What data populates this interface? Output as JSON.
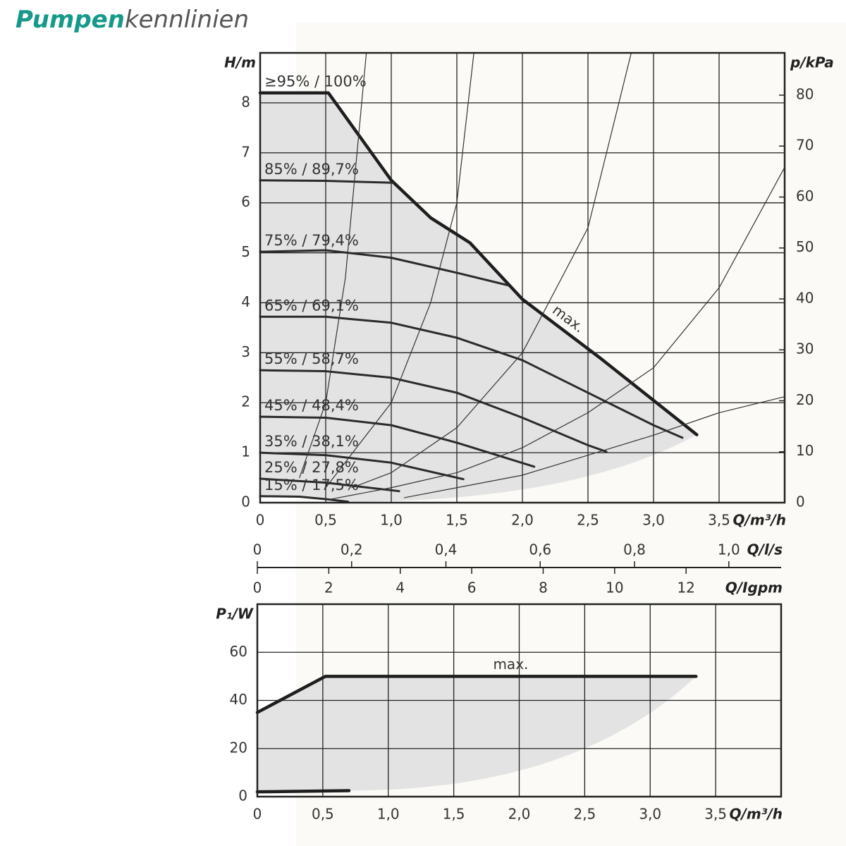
{
  "title": {
    "bold": "Pumpen",
    "rest": "kennlinien"
  },
  "chart_data": [
    {
      "type": "line",
      "ylabel": "H/m",
      "y2label": "p/kPa",
      "xlabel": "Q/m³/h",
      "annotations": [
        "≥95% / 100%"
      ],
      "xlim": [
        0,
        4
      ],
      "xticks": [
        0,
        {
          "value": 0.5,
          "label": "0,5"
        },
        {
          "value": 1,
          "label": "1,0"
        },
        {
          "value": 1.5,
          "label": "1,5"
        },
        {
          "value": 2,
          "label": "2,0"
        },
        {
          "value": 2.5,
          "label": "2,5"
        },
        {
          "value": 3,
          "label": "3,0"
        },
        {
          "value": 3.5,
          "label": "3,5"
        }
      ],
      "ylim": [
        0,
        9
      ],
      "yticks": [
        0,
        1,
        2,
        3,
        4,
        5,
        6,
        7,
        8
      ],
      "y2lim": [
        0,
        88.3
      ],
      "y2ticks": [
        0,
        10,
        20,
        30,
        40,
        50,
        60,
        70,
        80
      ],
      "grid": true,
      "fill": "#e3e3e3",
      "secondary_x_axes": [
        {
          "label": "Q/l/s",
          "xlim": [
            0,
            1.111
          ],
          "xticks": [
            0,
            {
              "value": 0.2,
              "label": "0,2"
            },
            {
              "value": 0.4,
              "label": "0,4"
            },
            {
              "value": 0.6,
              "label": "0,6"
            },
            {
              "value": 0.8,
              "label": "0,8"
            },
            {
              "value": 1,
              "label": "1,0"
            }
          ]
        },
        {
          "label": "Q/Igpm",
          "xlim": [
            0,
            14.66
          ],
          "xticks": [
            0,
            2,
            4,
            6,
            8,
            10,
            12
          ]
        }
      ],
      "series": [
        {
          "name": "max.",
          "color": "#1e1e1e",
          "width": 4.5,
          "label": "along",
          "x": [
            0,
            0.52,
            1.0,
            1.3,
            1.6,
            2.0,
            2.59,
            3.33
          ],
          "values": [
            8.2,
            8.2,
            6.45,
            5.7,
            5.2,
            4.07,
            2.9,
            1.36
          ]
        },
        {
          "name": "85% / 89,7%",
          "color": "#2b2b2b",
          "width": 3,
          "label": "start",
          "x": [
            0,
            0.5,
            1.02
          ],
          "values": [
            6.45,
            6.44,
            6.4
          ]
        },
        {
          "name": "75% / 79,4%",
          "color": "#2b2b2b",
          "width": 3,
          "label": "start",
          "x": [
            0,
            0.5,
            1.0,
            1.5,
            1.89
          ],
          "values": [
            5.02,
            5.05,
            4.9,
            4.6,
            4.35
          ]
        },
        {
          "name": "65% / 69,1%",
          "color": "#2b2b2b",
          "width": 3,
          "label": "start",
          "x": [
            0,
            0.5,
            1.0,
            1.5,
            2.0,
            2.5,
            3.0,
            3.22
          ],
          "values": [
            3.72,
            3.72,
            3.6,
            3.3,
            2.85,
            2.2,
            1.55,
            1.3
          ]
        },
        {
          "name": "55% / 58,7%",
          "color": "#2b2b2b",
          "width": 3,
          "label": "start",
          "x": [
            0,
            0.5,
            1.0,
            1.5,
            2.0,
            2.5,
            2.64
          ],
          "values": [
            2.65,
            2.63,
            2.5,
            2.2,
            1.7,
            1.15,
            1.02
          ]
        },
        {
          "name": "45% / 48,4%",
          "color": "#2b2b2b",
          "width": 3,
          "label": "start",
          "x": [
            0,
            0.5,
            1.0,
            1.5,
            2.09
          ],
          "values": [
            1.72,
            1.7,
            1.55,
            1.2,
            0.72
          ]
        },
        {
          "name": "35% / 38,1%",
          "color": "#2b2b2b",
          "width": 3,
          "label": "start",
          "x": [
            0,
            0.5,
            1.0,
            1.55
          ],
          "values": [
            1.0,
            0.95,
            0.8,
            0.47
          ]
        },
        {
          "name": "25% / 27,8%",
          "color": "#2b2b2b",
          "width": 3,
          "label": "start",
          "x": [
            0,
            0.5,
            1.06
          ],
          "values": [
            0.48,
            0.4,
            0.23
          ]
        },
        {
          "name": "15% / 17,5%",
          "color": "#2b2b2b",
          "width": 3,
          "label": "start",
          "x": [
            0,
            0.3,
            0.5,
            0.67
          ],
          "values": [
            0.13,
            0.12,
            0.07,
            0.02
          ]
        },
        {
          "color": "#333333",
          "width": 1.2,
          "x": [
            1.1,
            2.0,
            2.5,
            3.0,
            3.5,
            4.0
          ],
          "values": [
            0.1,
            0.55,
            0.95,
            1.35,
            1.8,
            2.12
          ]
        },
        {
          "color": "#333333",
          "width": 1.2,
          "x": [
            0.5,
            1.0,
            1.5,
            2.0,
            2.5,
            3.0,
            3.5,
            4.0
          ],
          "values": [
            0.05,
            0.3,
            0.6,
            1.1,
            1.8,
            2.7,
            4.3,
            6.71
          ]
        },
        {
          "color": "#333333",
          "width": 1.2,
          "x": [
            0.7,
            1.0,
            1.5,
            2.0,
            2.5,
            2.83
          ],
          "values": [
            0.3,
            0.6,
            1.5,
            3.0,
            5.5,
            9
          ]
        },
        {
          "color": "#333333",
          "width": 1.2,
          "x": [
            0.5,
            1.0,
            1.3,
            1.5,
            1.63
          ],
          "values": [
            0.3,
            2.0,
            4.0,
            6.0,
            9
          ]
        },
        {
          "color": "#333333",
          "width": 1.2,
          "x": [
            0.3,
            0.5,
            0.65,
            0.81
          ],
          "values": [
            0.5,
            2.0,
            4.5,
            9
          ]
        }
      ]
    },
    {
      "type": "line",
      "ylabel": "P₁/W",
      "xlabel": "Q/m³/h",
      "xlim": [
        0,
        4
      ],
      "xticks": [
        0,
        {
          "value": 0.5,
          "label": "0,5"
        },
        {
          "value": 1,
          "label": "1,0"
        },
        {
          "value": 1.5,
          "label": "1,5"
        },
        {
          "value": 2,
          "label": "2,0"
        },
        {
          "value": 2.5,
          "label": "2,5"
        },
        {
          "value": 3,
          "label": "3,0"
        },
        {
          "value": 3.5,
          "label": "3,5"
        }
      ],
      "ylim": [
        0,
        80
      ],
      "yticks": [
        0,
        20,
        40,
        60
      ],
      "grid": true,
      "fill": "#e3e3e3",
      "series": [
        {
          "name": "max.",
          "color": "#1e1e1e",
          "width": 4.5,
          "label": "above",
          "x": [
            0,
            0.52,
            3.35
          ],
          "values": [
            35,
            50,
            50
          ]
        },
        {
          "color": "#1e1e1e",
          "width": 4.5,
          "x": [
            0,
            0.7
          ],
          "values": [
            2,
            2.5
          ]
        }
      ]
    }
  ]
}
